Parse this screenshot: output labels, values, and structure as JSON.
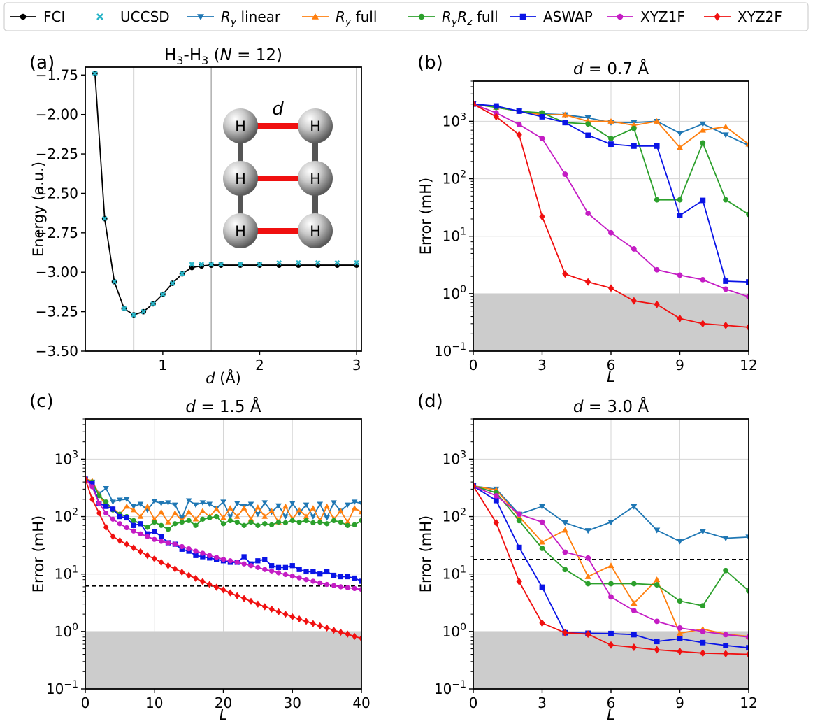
{
  "colors": {
    "FCI": "#000000",
    "UCCSD": "#2ab5c8",
    "Ry_linear": "#1f77b4",
    "Ry_full": "#ff7f0e",
    "RyRz_full": "#2ca02c",
    "ASWAP": "#0a14e6",
    "XYZ1F": "#c41cc4",
    "XYZ2F": "#f01010"
  },
  "legend": [
    {
      "key": "FCI",
      "label": "FCI",
      "marker": "circle"
    },
    {
      "key": "UCCSD",
      "label": "UCCSD",
      "marker": "x"
    },
    {
      "key": "Ry_linear",
      "label": "Ry linear",
      "marker": "tri-down"
    },
    {
      "key": "Ry_full",
      "label": "Ry full",
      "marker": "tri-up"
    },
    {
      "key": "RyRz_full",
      "label": "RyRz full",
      "marker": "circle"
    },
    {
      "key": "ASWAP",
      "label": "ASWAP",
      "marker": "square"
    },
    {
      "key": "XYZ1F",
      "label": "XYZ1F",
      "marker": "circle"
    },
    {
      "key": "XYZ2F",
      "label": "XYZ2F",
      "marker": "diamond"
    }
  ],
  "chart_data": [
    {
      "panel": "(a)",
      "type": "line",
      "title": "H3-H3 (N = 12)",
      "xlabel": "d (Å)",
      "ylabel": "Energy (a.u.)",
      "xlim": [
        0.2,
        3.05
      ],
      "ylim": [
        -3.5,
        -1.7
      ],
      "xticks": [
        1,
        2,
        3
      ],
      "yticks": [
        -3.5,
        -3.25,
        -3.0,
        -2.75,
        -2.5,
        -2.25,
        -2.0,
        -1.75
      ],
      "ytick_labels": [
        "−3.50",
        "−3.25",
        "−3.00",
        "−2.75",
        "−2.50",
        "−2.25",
        "−2.00",
        "−1.75"
      ],
      "vlines": [
        0.7,
        1.5,
        3.0
      ],
      "inset": {
        "bond_label": "d",
        "atom": "H"
      },
      "series": [
        {
          "key": "FCI",
          "x": [
            0.3,
            0.4,
            0.5,
            0.6,
            0.7,
            0.8,
            0.9,
            1.0,
            1.1,
            1.2,
            1.3,
            1.4,
            1.5,
            1.6,
            1.8,
            2.0,
            2.2,
            2.4,
            2.6,
            2.8,
            3.0
          ],
          "y": [
            -1.74,
            -2.66,
            -3.06,
            -3.23,
            -3.27,
            -3.25,
            -3.2,
            -3.14,
            -3.07,
            -3.01,
            -2.97,
            -2.96,
            -2.955,
            -2.955,
            -2.955,
            -2.955,
            -2.955,
            -2.955,
            -2.955,
            -2.955,
            -2.955
          ]
        },
        {
          "key": "UCCSD",
          "x": [
            0.3,
            0.4,
            0.5,
            0.6,
            0.7,
            0.8,
            0.9,
            1.0,
            1.1,
            1.2,
            1.3,
            1.4,
            1.5,
            1.6,
            1.8,
            2.0,
            2.2,
            2.4,
            2.6,
            2.8,
            3.0
          ],
          "y": [
            -1.74,
            -2.66,
            -3.06,
            -3.23,
            -3.27,
            -3.25,
            -3.2,
            -3.14,
            -3.07,
            -3.01,
            -2.95,
            -2.95,
            -2.95,
            -2.95,
            -2.95,
            -2.95,
            -2.94,
            -2.94,
            -2.94,
            -2.94,
            -2.94
          ]
        }
      ]
    },
    {
      "panel": "(b)",
      "type": "line",
      "yscale": "log",
      "title": "d = 0.7 Å",
      "xlabel": "L",
      "ylabel": "Error (mH)",
      "xlim": [
        0,
        12
      ],
      "ylim": [
        0.1,
        5000
      ],
      "xticks": [
        0,
        3,
        6,
        9,
        12
      ],
      "chem_acc": 1,
      "series": [
        {
          "key": "Ry_linear",
          "x": [
            0,
            1,
            2,
            3,
            4,
            5,
            6,
            7,
            8,
            9,
            10,
            11,
            12
          ],
          "y": [
            2000,
            1750,
            1500,
            1350,
            1300,
            1150,
            950,
            950,
            1000,
            620,
            900,
            580,
            380
          ]
        },
        {
          "key": "Ry_full",
          "x": [
            0,
            1,
            2,
            3,
            4,
            5,
            6,
            7,
            8,
            9,
            10,
            11,
            12
          ],
          "y": [
            2000,
            1750,
            1500,
            1300,
            1300,
            1000,
            1000,
            850,
            1000,
            350,
            700,
            800,
            400
          ]
        },
        {
          "key": "RyRz_full",
          "x": [
            0,
            1,
            2,
            3,
            4,
            5,
            6,
            7,
            8,
            9,
            10,
            11,
            12
          ],
          "y": [
            2000,
            1750,
            1500,
            1400,
            950,
            900,
            500,
            750,
            43,
            43,
            420,
            43,
            24
          ]
        },
        {
          "key": "ASWAP",
          "x": [
            0,
            1,
            2,
            3,
            4,
            5,
            6,
            7,
            8,
            9,
            10,
            11,
            12
          ],
          "y": [
            2000,
            1850,
            1500,
            1200,
            950,
            570,
            400,
            370,
            370,
            23,
            42,
            1.65,
            1.6
          ]
        },
        {
          "key": "XYZ1F",
          "x": [
            0,
            1,
            2,
            3,
            4,
            5,
            6,
            7,
            8,
            9,
            10,
            11,
            12
          ],
          "y": [
            2000,
            1400,
            880,
            500,
            120,
            25,
            11.5,
            6,
            2.6,
            2.1,
            1.75,
            1.2,
            0.88
          ]
        },
        {
          "key": "XYZ2F",
          "x": [
            0,
            1,
            2,
            3,
            4,
            5,
            6,
            7,
            8,
            9,
            10,
            11,
            12
          ],
          "y": [
            2000,
            1200,
            580,
            22,
            2.2,
            1.6,
            1.25,
            0.75,
            0.65,
            0.37,
            0.3,
            0.28,
            0.26
          ]
        }
      ]
    },
    {
      "panel": "(c)",
      "type": "line",
      "yscale": "log",
      "title": "d = 1.5 Å",
      "xlabel": "L",
      "ylabel": "Error (mH)",
      "xlim": [
        0,
        40
      ],
      "ylim": [
        0.1,
        5000
      ],
      "xticks": [
        0,
        10,
        20,
        30,
        40
      ],
      "chem_acc": 1,
      "dashed": 6.2,
      "series": [
        {
          "key": "Ry_linear",
          "x": [
            0,
            1,
            2,
            3,
            4,
            5,
            6,
            7,
            8,
            9,
            10,
            11,
            12,
            13,
            14,
            15,
            16,
            17,
            18,
            19,
            20,
            21,
            22,
            23,
            24,
            25,
            26,
            27,
            28,
            29,
            30,
            31,
            32,
            33,
            34,
            35,
            36,
            37,
            38,
            39,
            40
          ],
          "y": [
            450,
            400,
            250,
            310,
            180,
            195,
            200,
            150,
            165,
            130,
            185,
            170,
            175,
            160,
            95,
            190,
            160,
            175,
            165,
            140,
            180,
            100,
            170,
            150,
            165,
            110,
            175,
            120,
            155,
            100,
            170,
            115,
            160,
            100,
            165,
            95,
            175,
            125,
            160,
            180,
            170
          ]
        },
        {
          "key": "Ry_full",
          "x": [
            0,
            1,
            2,
            3,
            4,
            5,
            6,
            7,
            8,
            9,
            10,
            11,
            12,
            13,
            14,
            15,
            16,
            17,
            18,
            19,
            20,
            21,
            22,
            23,
            24,
            25,
            26,
            27,
            28,
            29,
            30,
            31,
            32,
            33,
            34,
            35,
            36,
            37,
            38,
            39,
            40
          ],
          "y": [
            450,
            420,
            240,
            150,
            140,
            110,
            150,
            130,
            100,
            150,
            90,
            120,
            80,
            115,
            85,
            120,
            90,
            125,
            100,
            135,
            95,
            140,
            100,
            140,
            90,
            145,
            100,
            125,
            80,
            150,
            90,
            130,
            100,
            140,
            85,
            150,
            90,
            125,
            80,
            140,
            120
          ]
        },
        {
          "key": "RyRz_full",
          "x": [
            0,
            1,
            2,
            3,
            4,
            5,
            6,
            7,
            8,
            9,
            10,
            11,
            12,
            13,
            14,
            15,
            16,
            17,
            18,
            19,
            20,
            21,
            22,
            23,
            24,
            25,
            26,
            27,
            28,
            29,
            30,
            31,
            32,
            33,
            34,
            35,
            36,
            37,
            38,
            39,
            40
          ],
          "y": [
            450,
            400,
            230,
            180,
            130,
            110,
            100,
            85,
            75,
            65,
            80,
            70,
            60,
            75,
            80,
            85,
            70,
            90,
            95,
            100,
            75,
            85,
            80,
            70,
            80,
            70,
            75,
            72,
            80,
            78,
            85,
            80,
            85,
            78,
            80,
            75,
            85,
            80,
            70,
            72,
            85
          ]
        },
        {
          "key": "ASWAP",
          "x": [
            0,
            1,
            2,
            3,
            4,
            5,
            6,
            7,
            8,
            9,
            10,
            11,
            12,
            13,
            14,
            15,
            16,
            17,
            18,
            19,
            20,
            21,
            22,
            23,
            24,
            25,
            26,
            27,
            28,
            29,
            30,
            31,
            32,
            33,
            34,
            35,
            36,
            37,
            38,
            39,
            40
          ],
          "y": [
            450,
            380,
            170,
            150,
            135,
            100,
            95,
            70,
            75,
            50,
            55,
            45,
            35,
            33,
            27,
            25,
            21,
            20,
            19,
            18,
            17,
            16,
            16,
            20,
            15,
            17,
            18,
            14,
            13,
            13,
            14,
            12,
            11,
            11,
            10,
            11,
            9.5,
            9,
            9,
            8.5,
            7.5
          ]
        },
        {
          "key": "XYZ1F",
          "x": [
            0,
            1,
            2,
            3,
            4,
            5,
            6,
            7,
            8,
            9,
            10,
            11,
            12,
            13,
            14,
            15,
            16,
            17,
            18,
            19,
            20,
            21,
            22,
            23,
            24,
            25,
            26,
            27,
            28,
            29,
            30,
            31,
            32,
            33,
            34,
            35,
            36,
            37,
            38,
            39,
            40
          ],
          "y": [
            450,
            330,
            170,
            115,
            90,
            75,
            64,
            56,
            50,
            45,
            40,
            37,
            35,
            33,
            30,
            27.5,
            25,
            23,
            21,
            19.5,
            18,
            17,
            16,
            15,
            14,
            13,
            12,
            11.3,
            10.5,
            9.8,
            9.2,
            8.6,
            8,
            7.5,
            7,
            6.6,
            6.3,
            6,
            5.8,
            5.6,
            5.4
          ]
        },
        {
          "key": "XYZ2F",
          "x": [
            0,
            1,
            2,
            3,
            4,
            5,
            6,
            7,
            8,
            9,
            10,
            11,
            12,
            13,
            14,
            15,
            16,
            17,
            18,
            19,
            20,
            21,
            22,
            23,
            24,
            25,
            26,
            27,
            28,
            29,
            30,
            31,
            32,
            33,
            34,
            35,
            36,
            37,
            38,
            39,
            40
          ],
          "y": [
            450,
            200,
            115,
            65,
            45,
            38,
            33,
            28.5,
            24.5,
            21,
            18.5,
            16,
            14,
            12.3,
            10.8,
            9.5,
            8.4,
            7.4,
            6.6,
            5.9,
            5.3,
            4.7,
            4.2,
            3.75,
            3.35,
            3.0,
            2.7,
            2.45,
            2.2,
            2.0,
            1.8,
            1.65,
            1.5,
            1.37,
            1.25,
            1.15,
            1.05,
            0.97,
            0.9,
            0.82,
            0.76
          ]
        }
      ]
    },
    {
      "panel": "(d)",
      "type": "line",
      "yscale": "log",
      "title": "d = 3.0 Å",
      "xlabel": "L",
      "ylabel": "Error (mH)",
      "xlim": [
        0,
        12
      ],
      "ylim": [
        0.1,
        5000
      ],
      "xticks": [
        0,
        3,
        6,
        9,
        12
      ],
      "chem_acc": 1,
      "dashed": 18,
      "series": [
        {
          "key": "Ry_linear",
          "x": [
            0,
            1,
            2,
            3,
            4,
            5,
            6,
            7,
            8,
            9,
            10,
            11,
            12
          ],
          "y": [
            340,
            300,
            110,
            150,
            78,
            57,
            80,
            150,
            58,
            37,
            55,
            42,
            44
          ]
        },
        {
          "key": "Ry_full",
          "x": [
            0,
            1,
            2,
            3,
            4,
            5,
            6,
            7,
            8,
            9,
            10,
            11,
            12
          ],
          "y": [
            340,
            290,
            100,
            36,
            58,
            9,
            14,
            3.1,
            8,
            0.93,
            1.1,
            0.9,
            0.82
          ]
        },
        {
          "key": "RyRz_full",
          "x": [
            0,
            1,
            2,
            3,
            4,
            5,
            6,
            7,
            8,
            9,
            10,
            11,
            12
          ],
          "y": [
            340,
            260,
            85,
            28,
            12,
            6.8,
            6.8,
            6.8,
            6.5,
            3.4,
            2.8,
            11.5,
            5.1
          ]
        },
        {
          "key": "ASWAP",
          "x": [
            0,
            1,
            2,
            3,
            4,
            5,
            6,
            7,
            8,
            9,
            10,
            11,
            12
          ],
          "y": [
            340,
            190,
            29,
            5.9,
            0.95,
            0.93,
            0.92,
            0.88,
            0.67,
            0.75,
            0.64,
            0.57,
            0.52
          ]
        },
        {
          "key": "XYZ1F",
          "x": [
            0,
            1,
            2,
            3,
            4,
            5,
            6,
            7,
            8,
            9,
            10,
            11,
            12
          ],
          "y": [
            340,
            230,
            110,
            80,
            24,
            19,
            4,
            2.3,
            1.5,
            1.15,
            1,
            0.88,
            0.8
          ]
        },
        {
          "key": "XYZ2F",
          "x": [
            0,
            1,
            2,
            3,
            4,
            5,
            6,
            7,
            8,
            9,
            10,
            11,
            12
          ],
          "y": [
            340,
            78,
            7.4,
            1.4,
            0.95,
            0.9,
            0.58,
            0.53,
            0.48,
            0.45,
            0.42,
            0.41,
            0.4
          ]
        }
      ]
    }
  ]
}
